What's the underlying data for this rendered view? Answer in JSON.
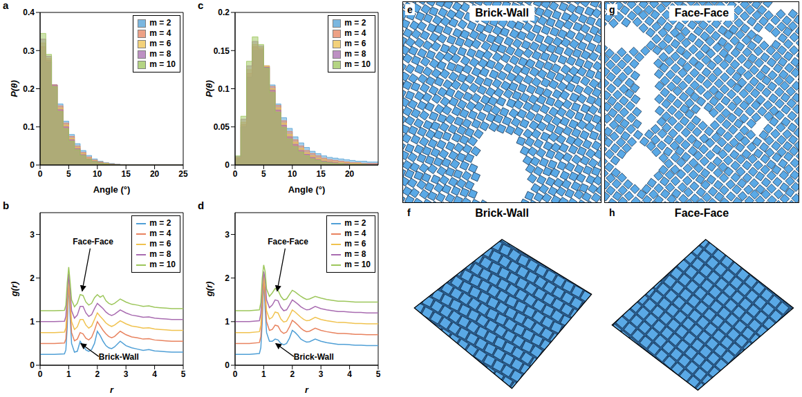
{
  "chart_data": [
    {
      "panel": "a",
      "type": "histogram",
      "x_label": "Angle (°)",
      "y_label": "P(θ)",
      "bins": [
        0,
        1,
        2,
        3,
        4,
        5,
        6,
        7,
        8,
        9,
        10,
        11,
        12,
        13,
        14,
        15,
        16,
        17,
        18,
        19,
        20,
        21,
        22,
        23,
        24,
        25
      ],
      "series": [
        {
          "name": "m = 2",
          "color": "#4f9fd6",
          "values": [
            0.3,
            0.27,
            0.21,
            0.16,
            0.115,
            0.08,
            0.056,
            0.038,
            0.025,
            0.016,
            0.01,
            0.006,
            0.004,
            0.002,
            0.001,
            0.0005,
            0,
            0,
            0,
            0,
            0,
            0,
            0,
            0,
            0
          ]
        },
        {
          "name": "m = 4",
          "color": "#e8825e",
          "values": [
            0.31,
            0.275,
            0.21,
            0.155,
            0.11,
            0.075,
            0.05,
            0.033,
            0.021,
            0.013,
            0.008,
            0.005,
            0.003,
            0.0015,
            0.0008,
            0,
            0,
            0,
            0,
            0,
            0,
            0,
            0,
            0,
            0
          ]
        },
        {
          "name": "m = 6",
          "color": "#f0c24e",
          "values": [
            0.32,
            0.28,
            0.21,
            0.15,
            0.105,
            0.07,
            0.046,
            0.03,
            0.018,
            0.011,
            0.007,
            0.004,
            0.002,
            0.001,
            0.0005,
            0,
            0,
            0,
            0,
            0,
            0,
            0,
            0,
            0,
            0
          ]
        },
        {
          "name": "m = 8",
          "color": "#a86bb0",
          "values": [
            0.33,
            0.285,
            0.21,
            0.145,
            0.1,
            0.066,
            0.043,
            0.027,
            0.016,
            0.01,
            0.006,
            0.003,
            0.002,
            0.001,
            0,
            0,
            0,
            0,
            0,
            0,
            0,
            0,
            0,
            0,
            0
          ]
        },
        {
          "name": "m = 10",
          "color": "#9cc65a",
          "values": [
            0.345,
            0.29,
            0.205,
            0.14,
            0.095,
            0.062,
            0.04,
            0.025,
            0.015,
            0.009,
            0.005,
            0.003,
            0.0015,
            0.0008,
            0,
            0,
            0,
            0,
            0,
            0,
            0,
            0,
            0,
            0,
            0
          ]
        }
      ],
      "xlim": [
        0,
        25
      ],
      "ylim": [
        0,
        0.4
      ],
      "xticks": [
        0,
        5,
        10,
        15,
        20,
        25
      ],
      "yticks": [
        0,
        0.1,
        0.2,
        0.3,
        0.4
      ],
      "legend": "upper right"
    },
    {
      "panel": "b",
      "type": "line",
      "x_label": "r",
      "y_label": "g(r)",
      "x": [
        0,
        0.5,
        0.85,
        0.9,
        0.95,
        1.0,
        1.05,
        1.1,
        1.2,
        1.3,
        1.4,
        1.5,
        1.6,
        1.7,
        1.8,
        1.9,
        2.0,
        2.1,
        2.2,
        2.3,
        2.4,
        2.5,
        2.6,
        2.8,
        3.0,
        3.2,
        3.4,
        3.6,
        3.8,
        4.0,
        4.2,
        4.4,
        4.6,
        4.8,
        5.0
      ],
      "series": [
        {
          "name": "m = 2",
          "color": "#4f9fd6",
          "values": [
            0.25,
            0.25,
            0.26,
            0.35,
            0.9,
            1.9,
            1.1,
            0.5,
            0.3,
            0.32,
            0.55,
            0.45,
            0.35,
            0.32,
            0.36,
            0.5,
            0.78,
            0.68,
            0.55,
            0.45,
            0.4,
            0.38,
            0.42,
            0.55,
            0.45,
            0.4,
            0.37,
            0.34,
            0.36,
            0.33,
            0.32,
            0.31,
            0.3,
            0.3,
            0.3
          ]
        },
        {
          "name": "m = 4",
          "color": "#e8825e",
          "values": [
            0.5,
            0.5,
            0.51,
            0.6,
            1.15,
            1.95,
            1.3,
            0.75,
            0.56,
            0.6,
            0.75,
            0.72,
            0.62,
            0.58,
            0.64,
            0.8,
            1.0,
            0.9,
            0.8,
            0.72,
            0.66,
            0.63,
            0.66,
            0.78,
            0.7,
            0.65,
            0.63,
            0.6,
            0.61,
            0.58,
            0.57,
            0.56,
            0.55,
            0.55,
            0.55
          ]
        },
        {
          "name": "m = 6",
          "color": "#f0c24e",
          "values": [
            0.75,
            0.75,
            0.76,
            0.86,
            1.4,
            2.0,
            1.5,
            1.0,
            0.82,
            0.88,
            1.05,
            1.05,
            0.92,
            0.85,
            0.9,
            1.05,
            1.2,
            1.12,
            1.05,
            0.97,
            0.92,
            0.89,
            0.92,
            1.02,
            0.95,
            0.9,
            0.88,
            0.85,
            0.86,
            0.83,
            0.82,
            0.81,
            0.8,
            0.8,
            0.8
          ]
        },
        {
          "name": "m = 8",
          "color": "#a86bb0",
          "values": [
            1.0,
            1.0,
            1.01,
            1.12,
            1.65,
            2.1,
            1.7,
            1.25,
            1.08,
            1.15,
            1.35,
            1.35,
            1.2,
            1.12,
            1.16,
            1.3,
            1.42,
            1.36,
            1.3,
            1.22,
            1.17,
            1.14,
            1.17,
            1.27,
            1.2,
            1.15,
            1.13,
            1.1,
            1.11,
            1.08,
            1.07,
            1.06,
            1.05,
            1.05,
            1.05
          ]
        },
        {
          "name": "m = 10",
          "color": "#9cc65a",
          "values": [
            1.25,
            1.25,
            1.26,
            1.38,
            1.9,
            2.25,
            1.9,
            1.5,
            1.34,
            1.42,
            1.62,
            1.6,
            1.45,
            1.38,
            1.42,
            1.55,
            1.62,
            1.56,
            1.6,
            1.48,
            1.42,
            1.39,
            1.42,
            1.52,
            1.45,
            1.4,
            1.38,
            1.35,
            1.36,
            1.33,
            1.32,
            1.31,
            1.3,
            1.3,
            1.3
          ]
        }
      ],
      "xlim": [
        0,
        5
      ],
      "ylim": [
        0,
        3.5
      ],
      "xticks": [
        0,
        1,
        2,
        3,
        4,
        5
      ],
      "yticks": [
        0,
        1,
        2,
        3
      ],
      "annotations": [
        "Face-Face",
        "Brick-Wall"
      ],
      "legend": "upper right"
    },
    {
      "panel": "c",
      "type": "histogram",
      "x_label": "Angle (°)",
      "y_label": "P(θ)",
      "bins": [
        0,
        1,
        2,
        3,
        4,
        5,
        6,
        7,
        8,
        9,
        10,
        11,
        12,
        13,
        14,
        15,
        16,
        17,
        18,
        19,
        20,
        21,
        22,
        23,
        24,
        25
      ],
      "series": [
        {
          "name": "m = 2",
          "color": "#4f9fd6",
          "values": [
            0.008,
            0.05,
            0.115,
            0.15,
            0.15,
            0.13,
            0.105,
            0.08,
            0.062,
            0.048,
            0.037,
            0.029,
            0.023,
            0.018,
            0.015,
            0.012,
            0.01,
            0.009,
            0.008,
            0.007,
            0.006,
            0.005,
            0.005,
            0.004,
            0.004
          ]
        },
        {
          "name": "m = 4",
          "color": "#e8825e",
          "values": [
            0.009,
            0.053,
            0.12,
            0.155,
            0.152,
            0.13,
            0.103,
            0.078,
            0.058,
            0.044,
            0.033,
            0.025,
            0.019,
            0.015,
            0.012,
            0.009,
            0.007,
            0.006,
            0.005,
            0.004,
            0.003,
            0.003,
            0.002,
            0.002,
            0.002
          ]
        },
        {
          "name": "m = 6",
          "color": "#f0c24e",
          "values": [
            0.01,
            0.056,
            0.125,
            0.158,
            0.154,
            0.13,
            0.1,
            0.075,
            0.055,
            0.04,
            0.03,
            0.022,
            0.016,
            0.012,
            0.009,
            0.007,
            0.005,
            0.004,
            0.003,
            0.003,
            0.002,
            0.002,
            0.001,
            0.001,
            0.001
          ]
        },
        {
          "name": "m = 8",
          "color": "#a86bb0",
          "values": [
            0.011,
            0.06,
            0.13,
            0.162,
            0.156,
            0.128,
            0.098,
            0.072,
            0.052,
            0.037,
            0.027,
            0.019,
            0.014,
            0.01,
            0.007,
            0.005,
            0.004,
            0.003,
            0.002,
            0.002,
            0.001,
            0.001,
            0.001,
            0.001,
            0.001
          ]
        },
        {
          "name": "m = 10",
          "color": "#9cc65a",
          "values": [
            0.012,
            0.064,
            0.136,
            0.168,
            0.158,
            0.127,
            0.095,
            0.069,
            0.049,
            0.034,
            0.024,
            0.017,
            0.012,
            0.008,
            0.006,
            0.004,
            0.003,
            0.002,
            0.002,
            0.001,
            0.001,
            0.001,
            0.001,
            0,
            0
          ]
        }
      ],
      "xlim": [
        0,
        25
      ],
      "ylim": [
        0,
        0.2
      ],
      "xticks": [
        0,
        5,
        10,
        15,
        20
      ],
      "yticks": [
        0,
        0.05,
        0.1,
        0.15,
        0.2
      ],
      "legend": "upper right"
    },
    {
      "panel": "d",
      "type": "line",
      "x_label": "r",
      "y_label": "g(r)",
      "x": [
        0,
        0.5,
        0.85,
        0.9,
        0.95,
        1.0,
        1.05,
        1.1,
        1.2,
        1.3,
        1.4,
        1.5,
        1.6,
        1.7,
        1.8,
        1.9,
        2.0,
        2.1,
        2.2,
        2.3,
        2.4,
        2.5,
        2.6,
        2.8,
        3.0,
        3.2,
        3.4,
        3.6,
        3.8,
        4.0,
        4.2,
        4.4,
        4.6,
        4.8,
        5.0
      ],
      "series": [
        {
          "name": "m = 2",
          "color": "#4f9fd6",
          "values": [
            0.25,
            0.25,
            0.27,
            0.4,
            1.0,
            1.95,
            1.3,
            0.75,
            0.55,
            0.55,
            0.6,
            0.58,
            0.5,
            0.47,
            0.5,
            0.62,
            0.8,
            0.75,
            0.68,
            0.6,
            0.56,
            0.53,
            0.54,
            0.6,
            0.55,
            0.52,
            0.5,
            0.48,
            0.48,
            0.47,
            0.46,
            0.46,
            0.45,
            0.45,
            0.45
          ]
        },
        {
          "name": "m = 4",
          "color": "#e8825e",
          "values": [
            0.5,
            0.5,
            0.52,
            0.66,
            1.25,
            2.0,
            1.55,
            1.0,
            0.8,
            0.82,
            0.92,
            0.9,
            0.78,
            0.73,
            0.76,
            0.88,
            1.03,
            0.98,
            0.92,
            0.85,
            0.8,
            0.77,
            0.78,
            0.85,
            0.8,
            0.77,
            0.75,
            0.73,
            0.73,
            0.72,
            0.71,
            0.71,
            0.7,
            0.7,
            0.7
          ]
        },
        {
          "name": "m = 6",
          "color": "#f0c24e",
          "values": [
            0.75,
            0.75,
            0.77,
            0.92,
            1.5,
            2.05,
            1.75,
            1.25,
            1.06,
            1.1,
            1.22,
            1.2,
            1.06,
            0.99,
            1.01,
            1.13,
            1.27,
            1.22,
            1.16,
            1.1,
            1.05,
            1.02,
            1.03,
            1.1,
            1.05,
            1.02,
            1.0,
            0.98,
            0.98,
            0.97,
            0.96,
            0.96,
            0.95,
            0.95,
            0.95
          ]
        },
        {
          "name": "m = 8",
          "color": "#a86bb0",
          "values": [
            1.0,
            1.0,
            1.02,
            1.18,
            1.75,
            2.15,
            1.95,
            1.5,
            1.32,
            1.38,
            1.5,
            1.48,
            1.33,
            1.25,
            1.27,
            1.38,
            1.5,
            1.45,
            1.4,
            1.34,
            1.3,
            1.27,
            1.28,
            1.35,
            1.3,
            1.27,
            1.25,
            1.23,
            1.23,
            1.22,
            1.21,
            1.21,
            1.2,
            1.2,
            1.2
          ]
        },
        {
          "name": "m = 10",
          "color": "#9cc65a",
          "values": [
            1.25,
            1.25,
            1.27,
            1.44,
            2.0,
            2.3,
            2.15,
            1.75,
            1.58,
            1.66,
            1.76,
            1.72,
            1.58,
            1.5,
            1.52,
            1.62,
            1.72,
            1.68,
            1.63,
            1.58,
            1.54,
            1.51,
            1.52,
            1.58,
            1.54,
            1.51,
            1.49,
            1.47,
            1.47,
            1.46,
            1.45,
            1.45,
            1.45,
            1.45,
            1.45
          ]
        }
      ],
      "xlim": [
        0,
        5
      ],
      "ylim": [
        0,
        3.5
      ],
      "xticks": [
        0,
        1,
        2,
        3,
        4,
        5
      ],
      "yticks": [
        0,
        1,
        2,
        3
      ],
      "annotations": [
        "Face-Face",
        "Brick-Wall"
      ],
      "legend": "upper right"
    }
  ],
  "images": [
    {
      "panel": "e",
      "title": "Brick-Wall"
    },
    {
      "panel": "f",
      "title": "Brick-Wall"
    },
    {
      "panel": "g",
      "title": "Face-Face"
    },
    {
      "panel": "h",
      "title": "Face-Face"
    }
  ]
}
